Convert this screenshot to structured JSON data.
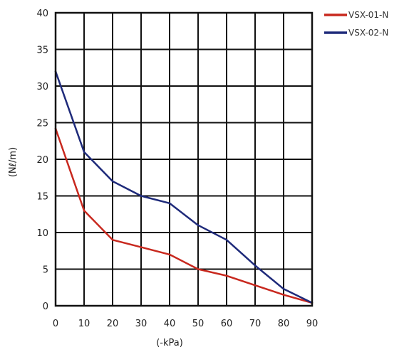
{
  "chart_data": {
    "type": "line",
    "title": "",
    "xlabel": "(-kPa)",
    "ylabel": "(Nℓ/m)",
    "xlim": [
      0,
      90
    ],
    "ylim": [
      0,
      40
    ],
    "x_ticks": [
      0,
      10,
      20,
      30,
      40,
      50,
      60,
      70,
      80,
      90
    ],
    "y_ticks": [
      0,
      5,
      10,
      15,
      20,
      25,
      30,
      35,
      40
    ],
    "grid": true,
    "legend_position": "top-right",
    "series": [
      {
        "name": "VSX-01-N",
        "color": "#c8281e",
        "x": [
          0,
          10,
          20,
          30,
          40,
          50,
          60,
          70,
          80,
          90
        ],
        "y": [
          24.2,
          13,
          9,
          8,
          7,
          5,
          4.1,
          2.8,
          1.5,
          0.4
        ]
      },
      {
        "name": "VSX-02-N",
        "color": "#1e2a7a",
        "x": [
          0,
          10,
          20,
          30,
          40,
          50,
          60,
          70,
          80,
          90
        ],
        "y": [
          32,
          21,
          17,
          15,
          14,
          11,
          9,
          5.5,
          2.3,
          0.4
        ]
      }
    ]
  }
}
